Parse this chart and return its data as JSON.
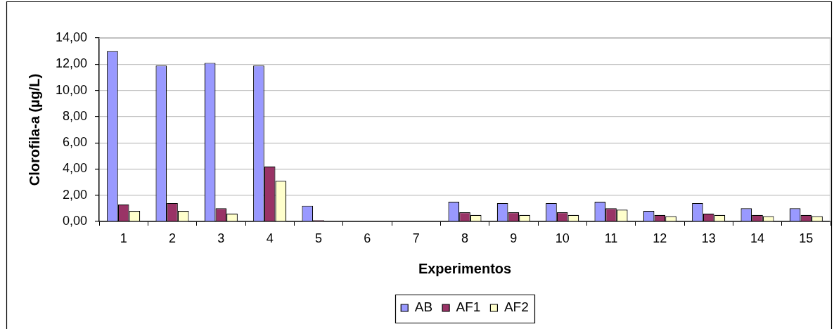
{
  "chart_data": {
    "type": "bar",
    "xlabel": "Experimentos",
    "ylabel": "Clorofila-a (µg/L)",
    "categories": [
      "1",
      "2",
      "3",
      "4",
      "5",
      "6",
      "7",
      "8",
      "9",
      "10",
      "11",
      "12",
      "13",
      "14",
      "15"
    ],
    "series": [
      {
        "name": "AB",
        "color": "#9999ff",
        "values": [
          13.0,
          11.9,
          12.1,
          11.9,
          1.2,
          null,
          null,
          1.5,
          1.4,
          1.4,
          1.5,
          0.8,
          1.4,
          1.0,
          1.0
        ]
      },
      {
        "name": "AF1",
        "color": "#993366",
        "values": [
          1.3,
          1.4,
          1.0,
          4.2,
          0.1,
          null,
          null,
          0.7,
          0.7,
          0.7,
          1.0,
          0.5,
          0.6,
          0.5,
          0.5
        ]
      },
      {
        "name": "AF2",
        "color": "#ffffcc",
        "values": [
          0.8,
          0.8,
          0.6,
          3.1,
          null,
          null,
          null,
          0.5,
          0.5,
          0.5,
          0.9,
          0.4,
          0.5,
          0.4,
          0.4
        ]
      }
    ],
    "ylim": [
      0,
      14
    ],
    "yticks": [
      {
        "value": 0,
        "label": "0,00"
      },
      {
        "value": 2,
        "label": "2,00"
      },
      {
        "value": 4,
        "label": "4,00"
      },
      {
        "value": 6,
        "label": "6,00"
      },
      {
        "value": 8,
        "label": "8,00"
      },
      {
        "value": 10,
        "label": "10,00"
      },
      {
        "value": 12,
        "label": "12,00"
      },
      {
        "value": 14,
        "label": "14,00"
      }
    ],
    "grid": "y",
    "legend": "bottom"
  }
}
